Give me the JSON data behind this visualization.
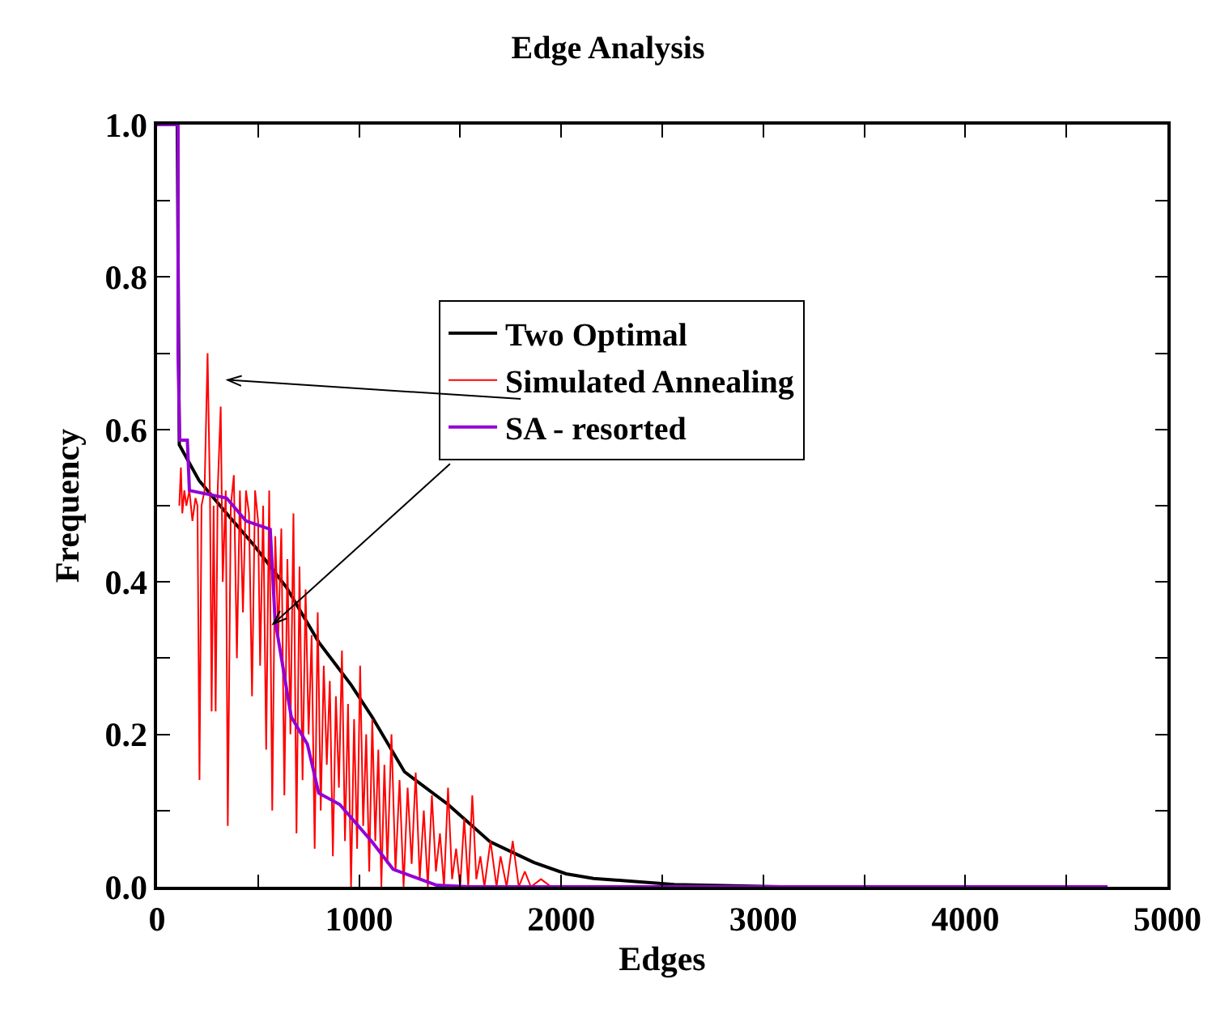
{
  "chart_data": {
    "type": "line",
    "title": "Edge Analysis",
    "xlabel": "Edges",
    "ylabel": "Frequency",
    "xlim": [
      0,
      5000
    ],
    "ylim": [
      0,
      1
    ],
    "xticks": [
      0,
      {
        "value": 500,
        "label": null
      },
      1000,
      {
        "value": 1500,
        "label": null
      },
      2000,
      {
        "value": 2500,
        "label": null
      },
      3000,
      {
        "value": 3500,
        "label": null
      },
      4000,
      {
        "value": 4500,
        "label": null
      },
      5000
    ],
    "yticks": [
      {
        "value": 0,
        "label": "0.0"
      },
      {
        "value": 0.1,
        "label": null
      },
      0.2,
      {
        "value": 0.3,
        "label": null
      },
      0.4,
      {
        "value": 0.5,
        "label": null
      },
      0.6,
      {
        "value": 0.7,
        "label": null
      },
      0.8,
      {
        "value": 0.9,
        "label": null
      },
      {
        "value": 1,
        "label": "1.0"
      }
    ],
    "grid": false,
    "legend": "top",
    "marker": "none",
    "line_style": "solid",
    "series": [
      {
        "name": "Two Optimal",
        "color": "#000000",
        "x": [
          0,
          100,
          110,
          208,
          344,
          480,
          640,
          800,
          960,
          1064,
          1224,
          1440,
          1648,
          1864,
          2024,
          2160,
          2560,
          3088
        ],
        "values": [
          1,
          1,
          0.58,
          0.533,
          0.49,
          0.448,
          0.393,
          0.321,
          0.265,
          0.223,
          0.151,
          0.108,
          0.059,
          0.032,
          0.017,
          0.011,
          0.003,
          0
        ]
      },
      {
        "name": "Simulated Annealing",
        "color": "#ff0000",
        "x": [
          110,
          118,
          125,
          135,
          145,
          160,
          175,
          190,
          200,
          210,
          220,
          235,
          250,
          262,
          270,
          280,
          290,
          300,
          315,
          325,
          340,
          350,
          365,
          380,
          395,
          410,
          425,
          440,
          455,
          470,
          485,
          500,
          510,
          525,
          540,
          555,
          570,
          585,
          600,
          615,
          630,
          645,
          660,
          675,
          690,
          705,
          720,
          735,
          750,
          765,
          780,
          795,
          810,
          825,
          840,
          855,
          870,
          885,
          900,
          915,
          930,
          945,
          960,
          975,
          990,
          1005,
          1020,
          1035,
          1050,
          1065,
          1080,
          1095,
          1110,
          1125,
          1140,
          1160,
          1180,
          1200,
          1220,
          1240,
          1260,
          1280,
          1300,
          1320,
          1340,
          1360,
          1380,
          1400,
          1420,
          1440,
          1460,
          1480,
          1500,
          1520,
          1540,
          1560,
          1580,
          1600,
          1620,
          1650,
          1680,
          1700,
          1730,
          1760,
          1790,
          1820,
          1850,
          1900,
          1950
        ],
        "values": [
          0.5,
          0.55,
          0.49,
          0.52,
          0.5,
          0.52,
          0.48,
          0.51,
          0.5,
          0.14,
          0.5,
          0.52,
          0.7,
          0.51,
          0.23,
          0.5,
          0.23,
          0.52,
          0.63,
          0.4,
          0.52,
          0.08,
          0.5,
          0.54,
          0.3,
          0.52,
          0.36,
          0.52,
          0.49,
          0.25,
          0.52,
          0.48,
          0.29,
          0.5,
          0.18,
          0.52,
          0.1,
          0.46,
          0.33,
          0.47,
          0.12,
          0.43,
          0.2,
          0.49,
          0.07,
          0.42,
          0.14,
          0.39,
          0.2,
          0.33,
          0.05,
          0.36,
          0.1,
          0.29,
          0.16,
          0.27,
          0.04,
          0.25,
          0.13,
          0.31,
          0.06,
          0.24,
          0,
          0.22,
          0.05,
          0.29,
          0.08,
          0.2,
          0.02,
          0.22,
          0.06,
          0.18,
          0,
          0.16,
          0.03,
          0.2,
          0.02,
          0.14,
          0,
          0.13,
          0.03,
          0.15,
          0.01,
          0.1,
          0,
          0.12,
          0.02,
          0.07,
          0,
          0.13,
          0.01,
          0.05,
          0,
          0.09,
          0,
          0.12,
          0.01,
          0.04,
          0,
          0.06,
          0,
          0.04,
          0,
          0.06,
          0,
          0.02,
          0,
          0.01,
          0
        ]
      },
      {
        "name": "SA - resorted",
        "color": "#9400d3",
        "x": [
          0,
          104,
          104,
          112,
          150,
          160,
          344,
          440,
          560,
          584,
          664,
          744,
          800,
          904,
          1064,
          1168,
          1384,
          1544,
          4704
        ],
        "values": [
          1,
          1,
          0.7,
          0.586,
          0.586,
          0.52,
          0.51,
          0.48,
          0.469,
          0.35,
          0.223,
          0.187,
          0.123,
          0.108,
          0.059,
          0.023,
          0.002,
          0,
          0
        ]
      }
    ]
  }
}
